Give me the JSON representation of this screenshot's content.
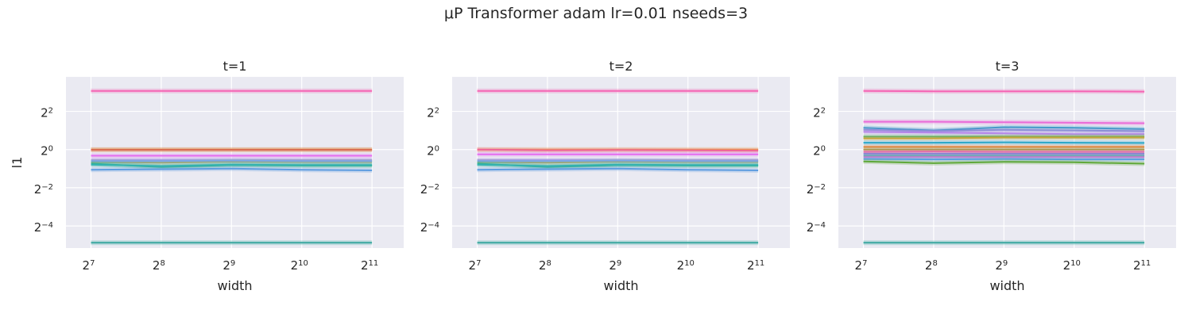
{
  "figure": {
    "suptitle": "μP Transformer adam lr=0.01 nseeds=3"
  },
  "colors": {
    "panel_bg": "#eaeaf2",
    "grid": "#ffffff",
    "text": "#262626"
  },
  "chart_data": [
    {
      "type": "line",
      "title": "t=1",
      "xlabel": "width",
      "ylabel": "l1",
      "xscale": "log2",
      "yscale": "log2",
      "grid": true,
      "xlim": [
        100,
        2800
      ],
      "ylim": [
        0.028,
        14
      ],
      "x": [
        128,
        256,
        512,
        1024,
        2048
      ],
      "xticks": [
        {
          "base": "2",
          "exp": "7",
          "value": 128
        },
        {
          "base": "2",
          "exp": "8",
          "value": 256
        },
        {
          "base": "2",
          "exp": "9",
          "value": 512
        },
        {
          "base": "2",
          "exp": "10",
          "value": 1024
        },
        {
          "base": "2",
          "exp": "11",
          "value": 2048
        }
      ],
      "yticks": [
        {
          "base": "2",
          "exp": "2",
          "value": 4
        },
        {
          "base": "2",
          "exp": "0",
          "value": 1
        },
        {
          "base": "2",
          "exp": "−2",
          "value": 0.25
        },
        {
          "base": "2",
          "exp": "−4",
          "value": 0.0625
        }
      ],
      "series": [
        {
          "color": "#f564b4",
          "values": [
            8.4,
            8.4,
            8.4,
            8.4,
            8.4
          ]
        },
        {
          "color": "#e8a33c",
          "values": [
            1.0,
            1.0,
            1.0,
            1.0,
            1.0
          ]
        },
        {
          "color": "#d96a55",
          "values": [
            0.99,
            0.99,
            0.99,
            0.99,
            0.99
          ]
        },
        {
          "color": "#e56cf0",
          "values": [
            0.8,
            0.8,
            0.8,
            0.8,
            0.8
          ]
        },
        {
          "color": "#b08ce0",
          "values": [
            0.68,
            0.68,
            0.68,
            0.68,
            0.68
          ]
        },
        {
          "color": "#a4a652",
          "values": [
            0.64,
            0.62,
            0.65,
            0.64,
            0.64
          ]
        },
        {
          "color": "#7aa8e8",
          "values": [
            0.66,
            0.66,
            0.67,
            0.66,
            0.66
          ]
        },
        {
          "color": "#33b07f",
          "values": [
            0.6,
            0.53,
            0.57,
            0.56,
            0.56
          ]
        },
        {
          "color": "#32b2b2",
          "values": [
            0.58,
            0.55,
            0.58,
            0.57,
            0.57
          ]
        },
        {
          "color": "#5f9de0",
          "values": [
            0.48,
            0.49,
            0.5,
            0.48,
            0.47
          ]
        },
        {
          "color": "#3aa7a0",
          "values": [
            0.034,
            0.034,
            0.034,
            0.034,
            0.034
          ]
        }
      ]
    },
    {
      "type": "line",
      "title": "t=2",
      "xlabel": "width",
      "ylabel": "",
      "xscale": "log2",
      "yscale": "log2",
      "grid": true,
      "xlim": [
        100,
        2800
      ],
      "ylim": [
        0.028,
        14
      ],
      "x": [
        128,
        256,
        512,
        1024,
        2048
      ],
      "xticks": [
        {
          "base": "2",
          "exp": "7",
          "value": 128
        },
        {
          "base": "2",
          "exp": "8",
          "value": 256
        },
        {
          "base": "2",
          "exp": "9",
          "value": 512
        },
        {
          "base": "2",
          "exp": "10",
          "value": 1024
        },
        {
          "base": "2",
          "exp": "11",
          "value": 2048
        }
      ],
      "yticks": [
        {
          "base": "2",
          "exp": "2",
          "value": 4
        },
        {
          "base": "2",
          "exp": "0",
          "value": 1
        },
        {
          "base": "2",
          "exp": "−2",
          "value": 0.25
        },
        {
          "base": "2",
          "exp": "−4",
          "value": 0.0625
        }
      ],
      "series": [
        {
          "color": "#f564b4",
          "values": [
            8.4,
            8.4,
            8.4,
            8.4,
            8.4
          ]
        },
        {
          "color": "#e8a33c",
          "values": [
            1.0,
            1.0,
            1.0,
            1.0,
            1.0
          ]
        },
        {
          "color": "#f0659a",
          "values": [
            1.0,
            0.97,
            0.98,
            0.97,
            0.96
          ]
        },
        {
          "color": "#e56cf0",
          "values": [
            0.84,
            0.84,
            0.84,
            0.84,
            0.84
          ]
        },
        {
          "color": "#b08ce0",
          "values": [
            0.68,
            0.68,
            0.68,
            0.68,
            0.68
          ]
        },
        {
          "color": "#a4a652",
          "values": [
            0.64,
            0.62,
            0.65,
            0.64,
            0.64
          ]
        },
        {
          "color": "#7aa8e8",
          "values": [
            0.66,
            0.66,
            0.67,
            0.66,
            0.66
          ]
        },
        {
          "color": "#33b07f",
          "values": [
            0.6,
            0.53,
            0.57,
            0.56,
            0.56
          ]
        },
        {
          "color": "#32b2b2",
          "values": [
            0.58,
            0.55,
            0.58,
            0.57,
            0.57
          ]
        },
        {
          "color": "#5f9de0",
          "values": [
            0.48,
            0.49,
            0.5,
            0.48,
            0.47
          ]
        },
        {
          "color": "#3aa7a0",
          "values": [
            0.034,
            0.034,
            0.034,
            0.034,
            0.034
          ]
        }
      ]
    },
    {
      "type": "line",
      "title": "t=3",
      "xlabel": "width",
      "ylabel": "",
      "xscale": "log2",
      "yscale": "log2",
      "grid": true,
      "xlim": [
        100,
        2800
      ],
      "ylim": [
        0.028,
        14
      ],
      "x": [
        128,
        256,
        512,
        1024,
        2048
      ],
      "xticks": [
        {
          "base": "2",
          "exp": "7",
          "value": 128
        },
        {
          "base": "2",
          "exp": "8",
          "value": 256
        },
        {
          "base": "2",
          "exp": "9",
          "value": 512
        },
        {
          "base": "2",
          "exp": "10",
          "value": 1024
        },
        {
          "base": "2",
          "exp": "11",
          "value": 2048
        }
      ],
      "yticks": [
        {
          "base": "2",
          "exp": "2",
          "value": 4
        },
        {
          "base": "2",
          "exp": "0",
          "value": 1
        },
        {
          "base": "2",
          "exp": "−2",
          "value": 0.25
        },
        {
          "base": "2",
          "exp": "−4",
          "value": 0.0625
        }
      ],
      "series": [
        {
          "color": "#f564b4",
          "values": [
            8.4,
            8.3,
            8.3,
            8.3,
            8.2
          ]
        },
        {
          "color": "#ea6bd8",
          "values": [
            2.75,
            2.75,
            2.7,
            2.65,
            2.6
          ]
        },
        {
          "color": "#3f9ac8",
          "values": [
            2.2,
            2.0,
            2.25,
            2.2,
            2.1
          ]
        },
        {
          "color": "#8a8fd6",
          "values": [
            2.05,
            1.95,
            2.05,
            2.0,
            1.95
          ]
        },
        {
          "color": "#b585e8",
          "values": [
            1.9,
            1.85,
            1.8,
            1.75,
            1.75
          ]
        },
        {
          "color": "#57b06a",
          "values": [
            1.6,
            1.6,
            1.6,
            1.6,
            1.6
          ]
        },
        {
          "color": "#c5a63a",
          "values": [
            1.5,
            1.5,
            1.55,
            1.55,
            1.55
          ]
        },
        {
          "color": "#2aa7c8",
          "values": [
            1.28,
            1.28,
            1.3,
            1.28,
            1.27
          ]
        },
        {
          "color": "#e0823a",
          "values": [
            1.1,
            1.1,
            1.1,
            1.1,
            1.1
          ]
        },
        {
          "color": "#a0a04a",
          "values": [
            1.0,
            1.0,
            1.0,
            1.0,
            1.0
          ]
        },
        {
          "color": "#f0659a",
          "values": [
            0.92,
            0.93,
            0.92,
            0.92,
            0.92
          ]
        },
        {
          "color": "#9a7fd8",
          "values": [
            0.86,
            0.86,
            0.86,
            0.86,
            0.86
          ]
        },
        {
          "color": "#3fb0a8",
          "values": [
            0.8,
            0.8,
            0.8,
            0.8,
            0.8
          ]
        },
        {
          "color": "#d97ad0",
          "values": [
            0.76,
            0.76,
            0.76,
            0.76,
            0.76
          ]
        },
        {
          "color": "#5aa0e0",
          "values": [
            0.71,
            0.7,
            0.71,
            0.7,
            0.7
          ]
        },
        {
          "color": "#5fa83a",
          "values": [
            0.65,
            0.61,
            0.64,
            0.63,
            0.6
          ]
        },
        {
          "color": "#3aa7a0",
          "values": [
            0.034,
            0.034,
            0.034,
            0.034,
            0.034
          ]
        }
      ]
    }
  ]
}
